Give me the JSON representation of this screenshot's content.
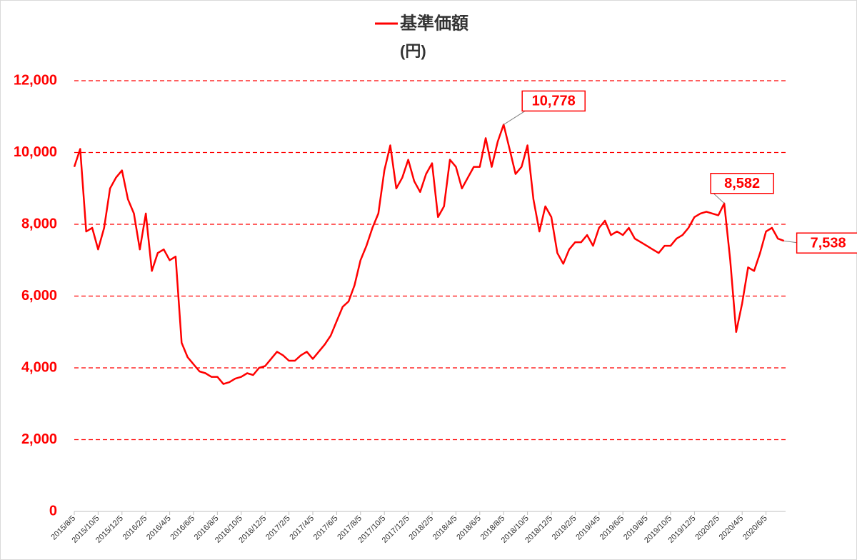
{
  "chart_data": {
    "type": "line",
    "y_label": "(円)",
    "categories": [
      "2015/8/5",
      null,
      null,
      null,
      "2015/10/5",
      null,
      null,
      null,
      "2015/12/5",
      null,
      null,
      null,
      "2016/2/5",
      null,
      null,
      null,
      "2016/4/5",
      null,
      null,
      null,
      "2016/6/5",
      null,
      null,
      null,
      "2016/8/5",
      null,
      null,
      null,
      "2016/10/5",
      null,
      null,
      null,
      "2016/12/5",
      null,
      null,
      null,
      "2017/2/5",
      null,
      null,
      null,
      "2017/4/5",
      null,
      null,
      null,
      "2017/6/5",
      null,
      null,
      null,
      "2017/8/5",
      null,
      null,
      null,
      "2017/10/5",
      null,
      null,
      null,
      "2017/12/5",
      null,
      null,
      null,
      "2018/2/5",
      null,
      null,
      null,
      "2018/4/5",
      null,
      null,
      null,
      "2018/6/5",
      null,
      null,
      null,
      "2018/8/5",
      null,
      null,
      null,
      "2018/10/5",
      null,
      null,
      null,
      "2018/12/5",
      null,
      null,
      null,
      "2019/2/5",
      null,
      null,
      null,
      "2019/4/5",
      null,
      null,
      null,
      "2019/6/5",
      null,
      null,
      null,
      "2019/8/5",
      null,
      null,
      null,
      "2019/10/5",
      null,
      null,
      null,
      "2019/12/5",
      null,
      null,
      null,
      "2020/2/5",
      null,
      null,
      null,
      "2020/4/5",
      null,
      null,
      null,
      "2020/6/5",
      null,
      null,
      null
    ],
    "series": [
      {
        "name": "基準価額",
        "color": "#ff0000",
        "values": [
          9600,
          10100,
          7800,
          7900,
          7300,
          7900,
          9000,
          9300,
          9500,
          8700,
          8300,
          7300,
          8300,
          6700,
          7200,
          7300,
          7000,
          7100,
          4700,
          4300,
          4100,
          3900,
          3850,
          3750,
          3750,
          3550,
          3600,
          3700,
          3750,
          3850,
          3800,
          4000,
          4050,
          4250,
          4450,
          4350,
          4200,
          4200,
          4350,
          4450,
          4250,
          4450,
          4650,
          4900,
          5300,
          5700,
          5850,
          6300,
          7000,
          7400,
          7900,
          8300,
          9500,
          10200,
          9000,
          9300,
          9800,
          9200,
          8900,
          9400,
          9700,
          8200,
          8500,
          9800,
          9600,
          9000,
          9300,
          9600,
          9600,
          10400,
          9600,
          10300,
          10778,
          10100,
          9400,
          9600,
          10200,
          8700,
          7800,
          8500,
          8200,
          7200,
          6900,
          7300,
          7500,
          7500,
          7700,
          7400,
          7900,
          8100,
          7700,
          7800,
          7700,
          7900,
          7600,
          7500,
          7400,
          7300,
          7200,
          7400,
          7400,
          7600,
          7700,
          7900,
          8200,
          8300,
          8350,
          8300,
          8250,
          8582,
          7000,
          5000,
          5800,
          6800,
          6700,
          7200,
          7800,
          7900,
          7600,
          7538
        ],
        "value_labels": [
          null,
          null,
          null,
          null,
          null,
          null,
          null,
          null,
          null,
          null,
          null,
          null,
          null,
          null,
          null,
          null,
          null,
          null,
          null,
          null,
          null,
          null,
          null,
          null,
          null,
          null,
          null,
          null,
          null,
          null,
          null,
          null,
          null,
          null,
          null,
          null,
          null,
          null,
          null,
          null,
          null,
          null,
          null,
          null,
          null,
          null,
          null,
          null,
          null,
          null,
          null,
          null,
          null,
          null,
          null,
          null,
          null,
          null,
          null,
          null,
          null,
          null,
          null,
          null,
          null,
          null,
          null,
          null,
          null,
          null,
          null,
          null,
          "10,778",
          null,
          null,
          null,
          null,
          null,
          null,
          null,
          null,
          null,
          null,
          null,
          null,
          null,
          null,
          null,
          null,
          null,
          null,
          null,
          null,
          null,
          null,
          null,
          null,
          null,
          null,
          null,
          null,
          null,
          null,
          null,
          null,
          null,
          null,
          null,
          null,
          "8,582",
          null,
          null,
          null,
          null,
          null,
          null,
          null,
          null,
          null,
          "7,538"
        ]
      }
    ],
    "ylim": [
      0,
      12000
    ],
    "yticks": [
      0,
      {
        "value": 2000,
        "label": "2,000"
      },
      {
        "value": 4000,
        "label": "4,000"
      },
      {
        "value": 6000,
        "label": "6,000"
      },
      {
        "value": 8000,
        "label": "8,000"
      },
      {
        "value": 10000,
        "label": "10,000"
      },
      {
        "value": 12000,
        "label": "12,000"
      }
    ],
    "grid": true
  }
}
